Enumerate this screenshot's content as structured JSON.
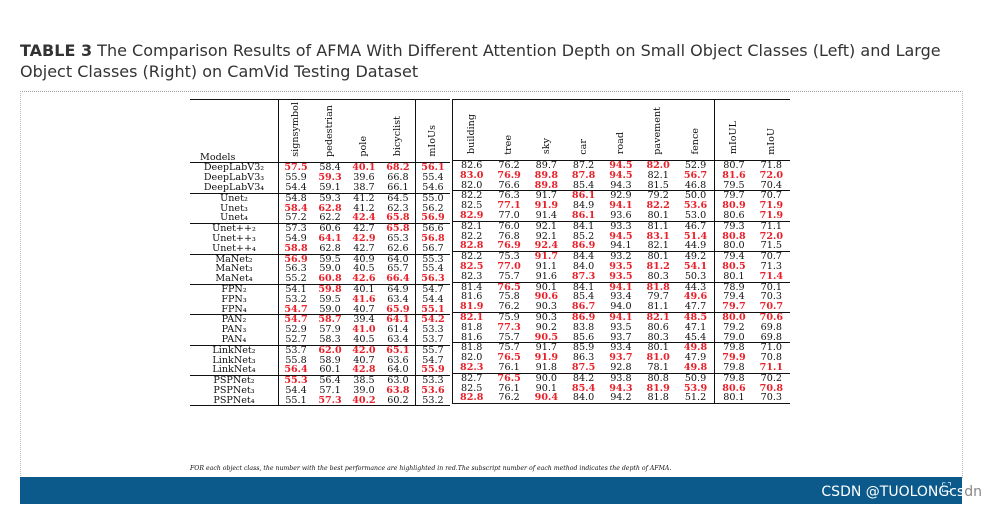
{
  "caption": {
    "label": "TABLE 3",
    "text": "The Comparison Results of AFMA With Different Attention Depth on Small Object Classes (Left) and Large Object Classes (Right) on CamVid Testing Dataset"
  },
  "table": {
    "models_header": "Models",
    "left_headers": [
      "signsymbol",
      "pedestrian",
      "pole",
      "bicyclist",
      "mIoUs"
    ],
    "right_headers": [
      "building",
      "tree",
      "sky",
      "car",
      "road",
      "pavement",
      "fence",
      "mIoUL",
      "mIoU"
    ],
    "groups": [
      {
        "rows": [
          {
            "model": "DeepLabV3₂",
            "left": [
              "57.5",
              "58.4",
              "40.1",
              "68.2",
              "56.1"
            ],
            "lh": [
              1,
              0,
              1,
              1,
              1
            ],
            "right": [
              "82.6",
              "76.2",
              "89.7",
              "87.2",
              "94.5",
              "82.0",
              "52.9",
              "80.7",
              "71.8"
            ],
            "rh": [
              0,
              0,
              0,
              0,
              1,
              1,
              0,
              0,
              0
            ]
          },
          {
            "model": "DeepLabV3₃",
            "left": [
              "55.9",
              "59.3",
              "39.6",
              "66.8",
              "55.4"
            ],
            "lh": [
              0,
              1,
              0,
              0,
              0
            ],
            "right": [
              "83.0",
              "76.9",
              "89.8",
              "87.8",
              "94.5",
              "82.1",
              "56.7",
              "81.6",
              "72.0"
            ],
            "rh": [
              1,
              1,
              1,
              1,
              1,
              0,
              1,
              1,
              1
            ]
          },
          {
            "model": "DeepLabV3₄",
            "left": [
              "54.4",
              "59.1",
              "38.7",
              "66.1",
              "54.6"
            ],
            "lh": [
              0,
              0,
              0,
              0,
              0
            ],
            "right": [
              "82.0",
              "76.6",
              "89.8",
              "85.4",
              "94.3",
              "81.5",
              "46.8",
              "79.5",
              "70.4"
            ],
            "rh": [
              0,
              0,
              1,
              0,
              0,
              0,
              0,
              0,
              0
            ]
          }
        ]
      },
      {
        "rows": [
          {
            "model": "Unet₂",
            "left": [
              "54.8",
              "59.3",
              "41.2",
              "64.5",
              "55.0"
            ],
            "lh": [
              0,
              0,
              0,
              0,
              0
            ],
            "right": [
              "82.2",
              "76.3",
              "91.7",
              "86.1",
              "92.9",
              "79.2",
              "50.0",
              "79.7",
              "70.7"
            ],
            "rh": [
              0,
              0,
              0,
              1,
              0,
              0,
              0,
              0,
              0
            ]
          },
          {
            "model": "Unet₃",
            "left": [
              "58.4",
              "62.8",
              "41.2",
              "62.3",
              "56.2"
            ],
            "lh": [
              1,
              1,
              0,
              0,
              0
            ],
            "right": [
              "82.5",
              "77.1",
              "91.9",
              "84.9",
              "94.1",
              "82.2",
              "53.6",
              "80.9",
              "71.9"
            ],
            "rh": [
              0,
              1,
              1,
              0,
              1,
              1,
              1,
              1,
              1
            ]
          },
          {
            "model": "Unet₄",
            "left": [
              "57.2",
              "62.2",
              "42.4",
              "65.8",
              "56.9"
            ],
            "lh": [
              0,
              0,
              1,
              1,
              1
            ],
            "right": [
              "82.9",
              "77.0",
              "91.4",
              "86.1",
              "93.6",
              "80.1",
              "53.0",
              "80.6",
              "71.9"
            ],
            "rh": [
              1,
              0,
              0,
              1,
              0,
              0,
              0,
              0,
              1
            ]
          }
        ]
      },
      {
        "rows": [
          {
            "model": "Unet++₂",
            "left": [
              "57.3",
              "60.6",
              "42.7",
              "65.8",
              "56.6"
            ],
            "lh": [
              0,
              0,
              0,
              1,
              0
            ],
            "right": [
              "82.1",
              "76.0",
              "92.1",
              "84.1",
              "93.3",
              "81.1",
              "46.7",
              "79.3",
              "71.1"
            ],
            "rh": [
              0,
              0,
              0,
              0,
              0,
              0,
              0,
              0,
              0
            ]
          },
          {
            "model": "Unet++₃",
            "left": [
              "54.9",
              "64.1",
              "42.9",
              "65.3",
              "56.8"
            ],
            "lh": [
              0,
              1,
              1,
              0,
              1
            ],
            "right": [
              "82.2",
              "76.8",
              "92.1",
              "85.2",
              "94.5",
              "83.1",
              "51.4",
              "80.8",
              "72.0"
            ],
            "rh": [
              0,
              0,
              0,
              0,
              1,
              1,
              1,
              1,
              1
            ]
          },
          {
            "model": "Unet++₄",
            "left": [
              "58.8",
              "62.8",
              "42.7",
              "62.6",
              "56.7"
            ],
            "lh": [
              1,
              0,
              0,
              0,
              0
            ],
            "right": [
              "82.8",
              "76.9",
              "92.4",
              "86.9",
              "94.1",
              "82.1",
              "44.9",
              "80.0",
              "71.5"
            ],
            "rh": [
              1,
              1,
              1,
              1,
              0,
              0,
              0,
              0,
              0
            ]
          }
        ]
      },
      {
        "rows": [
          {
            "model": "MaNet₂",
            "left": [
              "56.9",
              "59.5",
              "40.9",
              "64.0",
              "55.3"
            ],
            "lh": [
              1,
              0,
              0,
              0,
              0
            ],
            "right": [
              "82.2",
              "75.3",
              "91.7",
              "84.4",
              "93.2",
              "80.1",
              "49.2",
              "79.4",
              "70.7"
            ],
            "rh": [
              0,
              0,
              1,
              0,
              0,
              0,
              0,
              0,
              0
            ]
          },
          {
            "model": "MaNet₃",
            "left": [
              "56.3",
              "59.0",
              "40.5",
              "65.7",
              "55.4"
            ],
            "lh": [
              0,
              0,
              0,
              0,
              0
            ],
            "right": [
              "82.5",
              "77.0",
              "91.1",
              "84.0",
              "93.5",
              "81.2",
              "54.1",
              "80.5",
              "71.3"
            ],
            "rh": [
              1,
              1,
              0,
              0,
              1,
              1,
              1,
              1,
              0
            ]
          },
          {
            "model": "MaNet₄",
            "left": [
              "55.2",
              "60.8",
              "42.6",
              "66.4",
              "56.3"
            ],
            "lh": [
              0,
              1,
              1,
              1,
              1
            ],
            "right": [
              "82.3",
              "75.7",
              "91.6",
              "87.3",
              "93.5",
              "80.3",
              "50.3",
              "80.1",
              "71.4"
            ],
            "rh": [
              0,
              0,
              0,
              1,
              1,
              0,
              0,
              0,
              1
            ]
          }
        ]
      },
      {
        "rows": [
          {
            "model": "FPN₂",
            "left": [
              "54.1",
              "59.8",
              "40.1",
              "64.9",
              "54.7"
            ],
            "lh": [
              0,
              1,
              0,
              0,
              0
            ],
            "right": [
              "81.4",
              "76.5",
              "90.1",
              "84.1",
              "94.1",
              "81.8",
              "44.3",
              "78.9",
              "70.1"
            ],
            "rh": [
              0,
              1,
              0,
              0,
              1,
              1,
              0,
              0,
              0
            ]
          },
          {
            "model": "FPN₃",
            "left": [
              "53.2",
              "59.5",
              "41.6",
              "63.4",
              "54.4"
            ],
            "lh": [
              0,
              0,
              1,
              0,
              0
            ],
            "right": [
              "81.6",
              "75.8",
              "90.6",
              "85.4",
              "93.4",
              "79.7",
              "49.6",
              "79.4",
              "70.3"
            ],
            "rh": [
              0,
              0,
              1,
              0,
              0,
              0,
              1,
              0,
              0
            ]
          },
          {
            "model": "FPN₄",
            "left": [
              "54.7",
              "59.0",
              "40.7",
              "65.9",
              "55.1"
            ],
            "lh": [
              1,
              0,
              0,
              1,
              1
            ],
            "right": [
              "81.9",
              "76.2",
              "90.3",
              "86.7",
              "94.0",
              "81.1",
              "47.7",
              "79.7",
              "70.7"
            ],
            "rh": [
              1,
              0,
              0,
              1,
              0,
              0,
              0,
              1,
              1
            ]
          }
        ]
      },
      {
        "rows": [
          {
            "model": "PAN₂",
            "left": [
              "54.7",
              "58.7",
              "39.4",
              "64.1",
              "54.2"
            ],
            "lh": [
              1,
              1,
              0,
              1,
              1
            ],
            "right": [
              "82.1",
              "75.9",
              "90.3",
              "86.9",
              "94.1",
              "82.1",
              "48.5",
              "80.0",
              "70.6"
            ],
            "rh": [
              1,
              0,
              0,
              1,
              1,
              1,
              1,
              1,
              1
            ]
          },
          {
            "model": "PAN₃",
            "left": [
              "52.9",
              "57.9",
              "41.0",
              "61.4",
              "53.3"
            ],
            "lh": [
              0,
              0,
              1,
              0,
              0
            ],
            "right": [
              "81.8",
              "77.3",
              "90.2",
              "83.8",
              "93.5",
              "80.6",
              "47.1",
              "79.2",
              "69.8"
            ],
            "rh": [
              0,
              1,
              0,
              0,
              0,
              0,
              0,
              0,
              0
            ]
          },
          {
            "model": "PAN₄",
            "left": [
              "52.7",
              "58.3",
              "40.5",
              "63.4",
              "53.7"
            ],
            "lh": [
              0,
              0,
              0,
              0,
              0
            ],
            "right": [
              "81.6",
              "75.7",
              "90.5",
              "85.6",
              "93.7",
              "80.3",
              "45.4",
              "79.0",
              "69.8"
            ],
            "rh": [
              0,
              0,
              1,
              0,
              0,
              0,
              0,
              0,
              0
            ]
          }
        ]
      },
      {
        "rows": [
          {
            "model": "LinkNet₂",
            "left": [
              "53.7",
              "62.0",
              "42.0",
              "65.1",
              "55.7"
            ],
            "lh": [
              0,
              1,
              1,
              1,
              0
            ],
            "right": [
              "81.8",
              "75.7",
              "91.7",
              "85.9",
              "93.4",
              "80.1",
              "49.8",
              "79.8",
              "71.0"
            ],
            "rh": [
              0,
              0,
              0,
              0,
              0,
              0,
              1,
              0,
              0
            ]
          },
          {
            "model": "LinkNet₃",
            "left": [
              "55.8",
              "58.9",
              "40.7",
              "63.6",
              "54.7"
            ],
            "lh": [
              0,
              0,
              0,
              0,
              0
            ],
            "right": [
              "82.0",
              "76.5",
              "91.9",
              "86.3",
              "93.7",
              "81.0",
              "47.9",
              "79.9",
              "70.8"
            ],
            "rh": [
              0,
              1,
              1,
              0,
              1,
              1,
              0,
              1,
              0
            ]
          },
          {
            "model": "LinkNet₄",
            "left": [
              "56.4",
              "60.1",
              "42.8",
              "64.0",
              "55.9"
            ],
            "lh": [
              1,
              0,
              1,
              0,
              1
            ],
            "right": [
              "82.3",
              "76.1",
              "91.8",
              "87.5",
              "92.8",
              "78.1",
              "49.8",
              "79.8",
              "71.1"
            ],
            "rh": [
              1,
              0,
              0,
              1,
              0,
              0,
              1,
              0,
              1
            ]
          }
        ]
      },
      {
        "rows": [
          {
            "model": "PSPNet₂",
            "left": [
              "55.3",
              "56.4",
              "38.5",
              "63.0",
              "53.3"
            ],
            "lh": [
              1,
              0,
              0,
              0,
              0
            ],
            "right": [
              "82.7",
              "76.5",
              "90.0",
              "84.2",
              "93.8",
              "80.8",
              "50.9",
              "79.8",
              "70.2"
            ],
            "rh": [
              0,
              1,
              0,
              0,
              0,
              0,
              0,
              0,
              0
            ]
          },
          {
            "model": "PSPNet₃",
            "left": [
              "54.4",
              "57.1",
              "39.0",
              "63.8",
              "53.6"
            ],
            "lh": [
              0,
              0,
              0,
              1,
              1
            ],
            "right": [
              "82.5",
              "76.1",
              "90.1",
              "85.4",
              "94.3",
              "81.9",
              "53.9",
              "80.6",
              "70.8"
            ],
            "rh": [
              0,
              0,
              0,
              1,
              1,
              1,
              1,
              1,
              1
            ]
          },
          {
            "model": "PSPNet₄",
            "left": [
              "55.1",
              "57.3",
              "40.2",
              "60.2",
              "53.2"
            ],
            "lh": [
              0,
              1,
              1,
              0,
              0
            ],
            "right": [
              "82.8",
              "76.2",
              "90.4",
              "84.0",
              "94.2",
              "81.8",
              "51.2",
              "80.1",
              "70.3"
            ],
            "rh": [
              1,
              0,
              1,
              0,
              0,
              0,
              0,
              0,
              0
            ]
          }
        ]
      }
    ],
    "footnote": "FOR each object class, the number with the best performance are highlighted in red.The subscript number of each method indicates the depth of AFMA."
  },
  "watermark": {
    "main": "CSDN @TUOLONGcs",
    "tail": "dn"
  },
  "colors": {
    "highlight": "#e8202a",
    "bar": "#0c5a8c"
  },
  "icons": {
    "expand": "expand-icon"
  }
}
